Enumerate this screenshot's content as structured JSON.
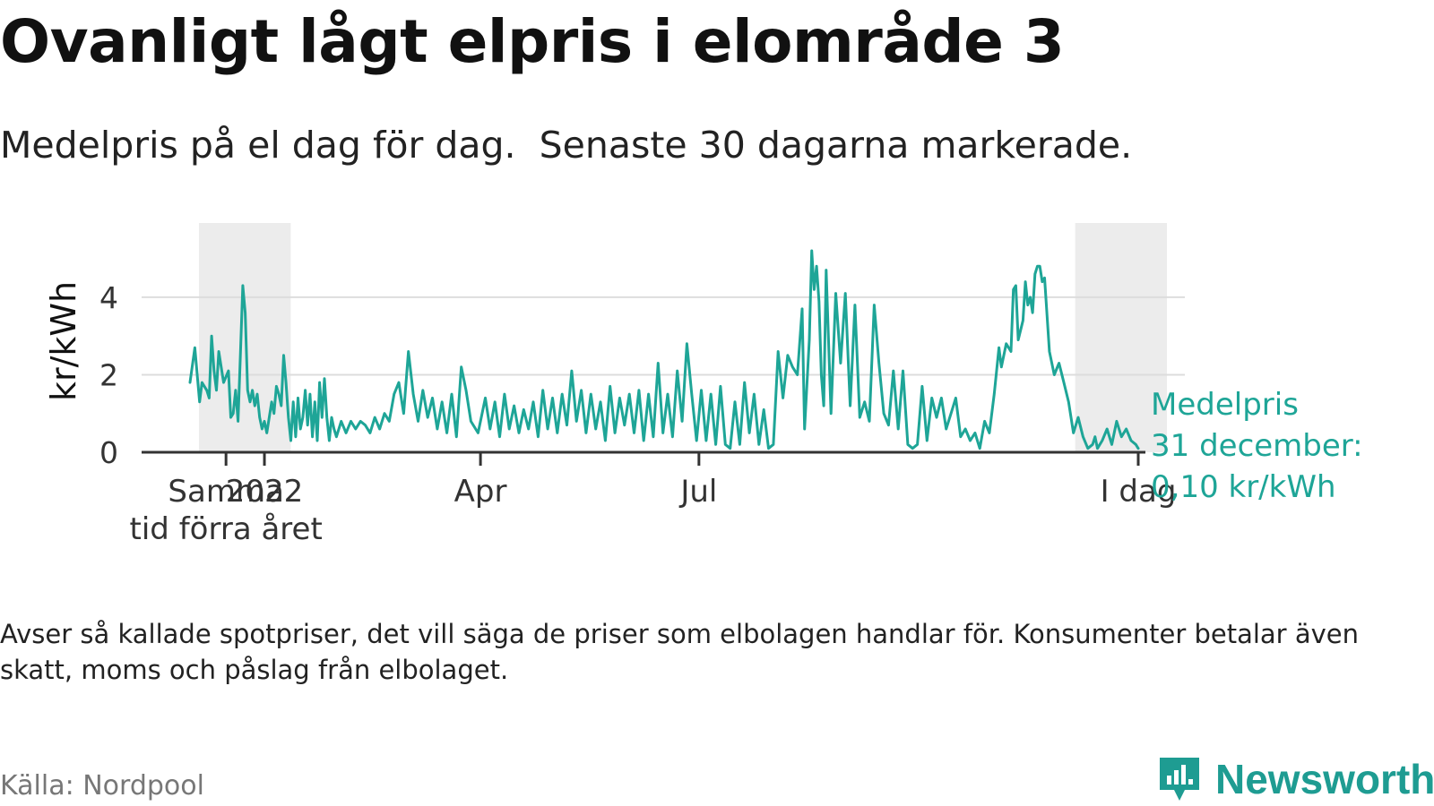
{
  "header": {
    "title": "Ovanligt lågt elpris i elområde 3",
    "subtitle": "Medelpris på el dag för dag.  Senaste 30 dagarna markerade."
  },
  "footer": {
    "note": "Avser så kallade spotpriser, det vill säga de priser som elbolagen handlar för. Konsumenter betalar även skatt, moms och påslag från elbolaget.",
    "source": "Källa: Nordpool",
    "brand": "Newsworthy"
  },
  "colors": {
    "line": "#1ea597",
    "shade": "#ececec",
    "grid": "#dddddd",
    "axis": "#333333",
    "brand": "#1e9c92"
  },
  "icons": {
    "brand_logo": "bar-chart-speech-bubble-icon"
  },
  "chart_data": {
    "type": "line",
    "ylabel": "kr/kWh",
    "ylim": [
      0,
      5.2
    ],
    "yticks": [
      0,
      2,
      4
    ],
    "grid": true,
    "x_start": "2021-12-01",
    "x_end": "2022-12-31",
    "shaded_ranges": [
      {
        "start": "2021-12-01",
        "end": "2021-12-31"
      },
      {
        "start": "2022-12-01",
        "end": "2022-12-31"
      }
    ],
    "x_ticks": [
      {
        "date": "2021-12-16",
        "label": "Samma tid förra året"
      },
      {
        "date": "2022-01-01",
        "label": "2022"
      },
      {
        "date": "2022-04-01",
        "label": "Apr"
      },
      {
        "date": "2022-07-01",
        "label": "Jul"
      },
      {
        "date": "2022-12-31",
        "label": "I dag"
      }
    ],
    "annotation": {
      "lines": [
        "Medelpris",
        "31 december:",
        "0,10 kr/kWh"
      ],
      "date": "2022-12-31",
      "value": 0.1
    },
    "series": [
      {
        "values": [
          [
            "2021-12-01",
            1.8
          ],
          [
            "2021-12-03",
            2.7
          ],
          [
            "2021-12-05",
            1.3
          ],
          [
            "2021-12-06",
            1.8
          ],
          [
            "2021-12-08",
            1.6
          ],
          [
            "2021-12-09",
            1.4
          ],
          [
            "2021-12-10",
            3.0
          ],
          [
            "2021-12-11",
            2.1
          ],
          [
            "2021-12-12",
            1.6
          ],
          [
            "2021-12-13",
            2.6
          ],
          [
            "2021-12-15",
            1.8
          ],
          [
            "2021-12-17",
            2.1
          ],
          [
            "2021-12-18",
            0.9
          ],
          [
            "2021-12-19",
            1.0
          ],
          [
            "2021-12-20",
            1.6
          ],
          [
            "2021-12-21",
            0.8
          ],
          [
            "2021-12-22",
            2.5
          ],
          [
            "2021-12-23",
            4.3
          ],
          [
            "2021-12-24",
            3.6
          ],
          [
            "2021-12-25",
            1.6
          ],
          [
            "2021-12-26",
            1.3
          ],
          [
            "2021-12-27",
            1.6
          ],
          [
            "2021-12-28",
            1.2
          ],
          [
            "2021-12-29",
            1.5
          ],
          [
            "2021-12-30",
            0.9
          ],
          [
            "2021-12-31",
            0.6
          ],
          [
            "2022-01-01",
            0.8
          ],
          [
            "2022-01-02",
            0.5
          ],
          [
            "2022-01-03",
            0.9
          ],
          [
            "2022-01-04",
            1.3
          ],
          [
            "2022-01-05",
            1.0
          ],
          [
            "2022-01-06",
            1.7
          ],
          [
            "2022-01-07",
            1.5
          ],
          [
            "2022-01-08",
            1.2
          ],
          [
            "2022-01-09",
            2.5
          ],
          [
            "2022-01-10",
            1.8
          ],
          [
            "2022-01-11",
            0.9
          ],
          [
            "2022-01-12",
            0.3
          ],
          [
            "2022-01-13",
            1.3
          ],
          [
            "2022-01-14",
            0.4
          ],
          [
            "2022-01-15",
            1.4
          ],
          [
            "2022-01-16",
            0.6
          ],
          [
            "2022-01-17",
            0.9
          ],
          [
            "2022-01-18",
            1.6
          ],
          [
            "2022-01-19",
            0.7
          ],
          [
            "2022-01-20",
            1.5
          ],
          [
            "2022-01-21",
            0.4
          ],
          [
            "2022-01-22",
            1.3
          ],
          [
            "2022-01-23",
            0.3
          ],
          [
            "2022-01-24",
            1.8
          ],
          [
            "2022-01-25",
            0.9
          ],
          [
            "2022-01-26",
            1.9
          ],
          [
            "2022-01-27",
            0.9
          ],
          [
            "2022-01-28",
            0.3
          ],
          [
            "2022-01-29",
            0.9
          ],
          [
            "2022-01-30",
            0.6
          ],
          [
            "2022-01-31",
            0.4
          ],
          [
            "2022-02-02",
            0.8
          ],
          [
            "2022-02-04",
            0.5
          ],
          [
            "2022-02-06",
            0.8
          ],
          [
            "2022-02-08",
            0.6
          ],
          [
            "2022-02-10",
            0.8
          ],
          [
            "2022-02-12",
            0.7
          ],
          [
            "2022-02-14",
            0.5
          ],
          [
            "2022-02-16",
            0.9
          ],
          [
            "2022-02-18",
            0.6
          ],
          [
            "2022-02-20",
            1.0
          ],
          [
            "2022-02-22",
            0.8
          ],
          [
            "2022-02-24",
            1.5
          ],
          [
            "2022-02-26",
            1.8
          ],
          [
            "2022-02-28",
            1.0
          ],
          [
            "2022-03-02",
            2.6
          ],
          [
            "2022-03-04",
            1.5
          ],
          [
            "2022-03-06",
            0.8
          ],
          [
            "2022-03-08",
            1.6
          ],
          [
            "2022-03-10",
            0.9
          ],
          [
            "2022-03-12",
            1.4
          ],
          [
            "2022-03-14",
            0.6
          ],
          [
            "2022-03-16",
            1.3
          ],
          [
            "2022-03-18",
            0.5
          ],
          [
            "2022-03-20",
            1.5
          ],
          [
            "2022-03-22",
            0.4
          ],
          [
            "2022-03-24",
            2.2
          ],
          [
            "2022-03-26",
            1.6
          ],
          [
            "2022-03-28",
            0.8
          ],
          [
            "2022-03-31",
            0.5
          ],
          [
            "2022-04-03",
            1.4
          ],
          [
            "2022-04-05",
            0.6
          ],
          [
            "2022-04-07",
            1.3
          ],
          [
            "2022-04-09",
            0.4
          ],
          [
            "2022-04-11",
            1.5
          ],
          [
            "2022-04-13",
            0.6
          ],
          [
            "2022-04-15",
            1.2
          ],
          [
            "2022-04-17",
            0.5
          ],
          [
            "2022-04-19",
            1.1
          ],
          [
            "2022-04-21",
            0.6
          ],
          [
            "2022-04-23",
            1.3
          ],
          [
            "2022-04-25",
            0.4
          ],
          [
            "2022-04-27",
            1.6
          ],
          [
            "2022-04-29",
            0.6
          ],
          [
            "2022-05-01",
            1.4
          ],
          [
            "2022-05-03",
            0.5
          ],
          [
            "2022-05-05",
            1.5
          ],
          [
            "2022-05-07",
            0.7
          ],
          [
            "2022-05-09",
            2.1
          ],
          [
            "2022-05-11",
            0.8
          ],
          [
            "2022-05-13",
            1.6
          ],
          [
            "2022-05-15",
            0.5
          ],
          [
            "2022-05-17",
            1.5
          ],
          [
            "2022-05-19",
            0.6
          ],
          [
            "2022-05-21",
            1.3
          ],
          [
            "2022-05-23",
            0.3
          ],
          [
            "2022-05-25",
            1.7
          ],
          [
            "2022-05-27",
            0.5
          ],
          [
            "2022-05-29",
            1.4
          ],
          [
            "2022-05-31",
            0.7
          ],
          [
            "2022-06-02",
            1.5
          ],
          [
            "2022-06-04",
            0.5
          ],
          [
            "2022-06-06",
            1.6
          ],
          [
            "2022-06-08",
            0.3
          ],
          [
            "2022-06-10",
            1.5
          ],
          [
            "2022-06-12",
            0.4
          ],
          [
            "2022-06-14",
            2.3
          ],
          [
            "2022-06-16",
            0.5
          ],
          [
            "2022-06-18",
            1.5
          ],
          [
            "2022-06-20",
            0.4
          ],
          [
            "2022-06-22",
            2.1
          ],
          [
            "2022-06-24",
            0.8
          ],
          [
            "2022-06-26",
            2.8
          ],
          [
            "2022-06-28",
            1.5
          ],
          [
            "2022-06-30",
            0.3
          ],
          [
            "2022-07-02",
            1.6
          ],
          [
            "2022-07-04",
            0.3
          ],
          [
            "2022-07-06",
            1.5
          ],
          [
            "2022-07-08",
            0.2
          ],
          [
            "2022-07-10",
            1.7
          ],
          [
            "2022-07-12",
            0.2
          ],
          [
            "2022-07-14",
            0.1
          ],
          [
            "2022-07-16",
            1.3
          ],
          [
            "2022-07-18",
            0.2
          ],
          [
            "2022-07-20",
            1.8
          ],
          [
            "2022-07-22",
            0.5
          ],
          [
            "2022-07-24",
            1.5
          ],
          [
            "2022-07-26",
            0.2
          ],
          [
            "2022-07-28",
            1.1
          ],
          [
            "2022-07-30",
            0.1
          ],
          [
            "2022-08-01",
            0.2
          ],
          [
            "2022-08-03",
            2.6
          ],
          [
            "2022-08-05",
            1.4
          ],
          [
            "2022-08-07",
            2.5
          ],
          [
            "2022-08-09",
            2.2
          ],
          [
            "2022-08-11",
            2.0
          ],
          [
            "2022-08-13",
            3.7
          ],
          [
            "2022-08-14",
            0.6
          ],
          [
            "2022-08-16",
            2.9
          ],
          [
            "2022-08-17",
            5.2
          ],
          [
            "2022-08-18",
            4.2
          ],
          [
            "2022-08-19",
            4.8
          ],
          [
            "2022-08-20",
            3.9
          ],
          [
            "2022-08-21",
            2.0
          ],
          [
            "2022-08-22",
            1.2
          ],
          [
            "2022-08-23",
            4.7
          ],
          [
            "2022-08-25",
            1.0
          ],
          [
            "2022-08-27",
            4.1
          ],
          [
            "2022-08-29",
            2.3
          ],
          [
            "2022-08-31",
            4.1
          ],
          [
            "2022-09-02",
            1.2
          ],
          [
            "2022-09-04",
            3.8
          ],
          [
            "2022-09-06",
            0.9
          ],
          [
            "2022-09-08",
            1.3
          ],
          [
            "2022-09-10",
            0.8
          ],
          [
            "2022-09-12",
            3.8
          ],
          [
            "2022-09-14",
            2.3
          ],
          [
            "2022-09-16",
            1.0
          ],
          [
            "2022-09-18",
            0.7
          ],
          [
            "2022-09-20",
            2.1
          ],
          [
            "2022-09-22",
            0.6
          ],
          [
            "2022-09-24",
            2.1
          ],
          [
            "2022-09-26",
            0.2
          ],
          [
            "2022-09-28",
            0.1
          ],
          [
            "2022-09-30",
            0.2
          ],
          [
            "2022-10-02",
            1.7
          ],
          [
            "2022-10-04",
            0.3
          ],
          [
            "2022-10-06",
            1.4
          ],
          [
            "2022-10-08",
            0.9
          ],
          [
            "2022-10-10",
            1.4
          ],
          [
            "2022-10-12",
            0.6
          ],
          [
            "2022-10-14",
            1.0
          ],
          [
            "2022-10-16",
            1.4
          ],
          [
            "2022-10-18",
            0.4
          ],
          [
            "2022-10-20",
            0.6
          ],
          [
            "2022-10-22",
            0.3
          ],
          [
            "2022-10-24",
            0.5
          ],
          [
            "2022-10-26",
            0.1
          ],
          [
            "2022-10-28",
            0.8
          ],
          [
            "2022-10-30",
            0.5
          ],
          [
            "2022-11-01",
            1.5
          ],
          [
            "2022-11-03",
            2.7
          ],
          [
            "2022-11-04",
            2.2
          ],
          [
            "2022-11-06",
            2.8
          ],
          [
            "2022-11-08",
            2.6
          ],
          [
            "2022-11-09",
            4.2
          ],
          [
            "2022-11-10",
            4.3
          ],
          [
            "2022-11-11",
            2.9
          ],
          [
            "2022-11-13",
            3.4
          ],
          [
            "2022-11-14",
            4.4
          ],
          [
            "2022-11-15",
            3.8
          ],
          [
            "2022-11-16",
            4.0
          ],
          [
            "2022-11-17",
            3.6
          ],
          [
            "2022-11-18",
            4.6
          ],
          [
            "2022-11-19",
            4.8
          ],
          [
            "2022-11-20",
            4.8
          ],
          [
            "2022-11-21",
            4.4
          ],
          [
            "2022-11-22",
            4.5
          ],
          [
            "2022-11-24",
            2.6
          ],
          [
            "2022-11-26",
            2.0
          ],
          [
            "2022-11-28",
            2.3
          ],
          [
            "2022-11-30",
            1.8
          ],
          [
            "2022-12-02",
            1.3
          ],
          [
            "2022-12-04",
            0.5
          ],
          [
            "2022-12-06",
            0.9
          ],
          [
            "2022-12-08",
            0.4
          ],
          [
            "2022-12-10",
            0.1
          ],
          [
            "2022-12-12",
            0.2
          ],
          [
            "2022-12-13",
            0.4
          ],
          [
            "2022-12-14",
            0.1
          ],
          [
            "2022-12-16",
            0.3
          ],
          [
            "2022-12-18",
            0.6
          ],
          [
            "2022-12-20",
            0.2
          ],
          [
            "2022-12-22",
            0.8
          ],
          [
            "2022-12-24",
            0.4
          ],
          [
            "2022-12-26",
            0.6
          ],
          [
            "2022-12-28",
            0.3
          ],
          [
            "2022-12-30",
            0.2
          ],
          [
            "2022-12-31",
            0.1
          ]
        ]
      }
    ]
  }
}
